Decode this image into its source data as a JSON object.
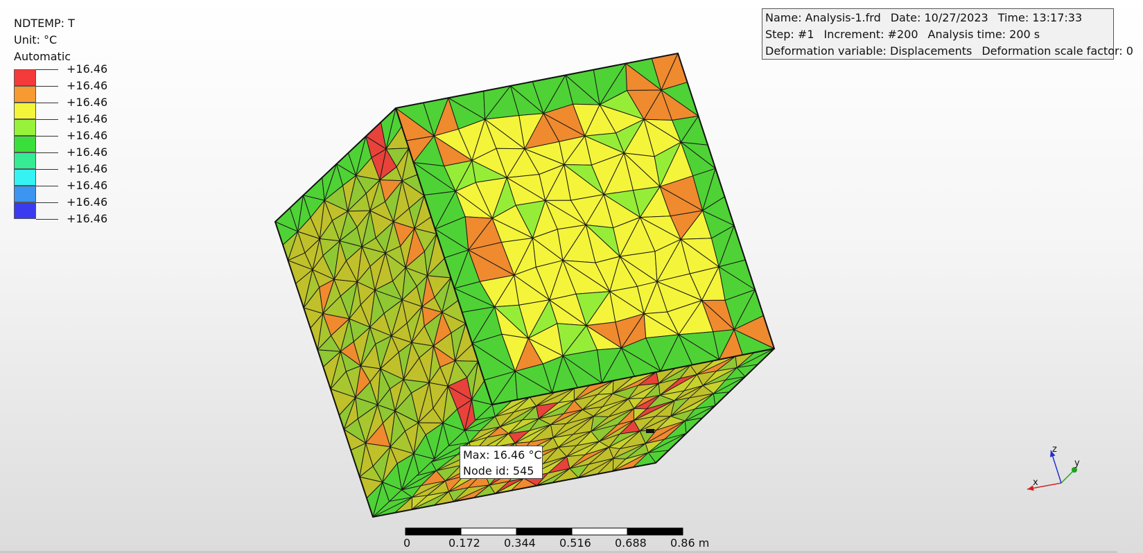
{
  "legend": {
    "variable": "NDTEMP: T",
    "unit": "Unit: °C",
    "mode": "Automatic",
    "levels": [
      {
        "label": "+16.46",
        "color": "#f43a3a"
      },
      {
        "label": "+16.46",
        "color": "#f89a32"
      },
      {
        "label": "+16.46",
        "color": "#f3f53a"
      },
      {
        "label": "+16.46",
        "color": "#98f13a"
      },
      {
        "label": "+16.46",
        "color": "#3bdf3b"
      },
      {
        "label": "+16.46",
        "color": "#35eb94"
      },
      {
        "label": "+16.46",
        "color": "#35f3f3"
      },
      {
        "label": "+16.46",
        "color": "#3b95f1"
      },
      {
        "label": "+16.46",
        "color": "#3a3af1"
      },
      {
        "label": "+16.46"
      }
    ]
  },
  "info": {
    "name": "Name: Analysis-1.frd",
    "date": "Date: 10/27/2023",
    "time": "Time: 13:17:33",
    "step": "Step: #1",
    "increment": "Increment: #200",
    "analysis_time": "Analysis time: 200 s",
    "deformation_variable": "Deformation variable: Displacements",
    "deformation_scale": "Deformation scale factor: 0"
  },
  "tooltip": {
    "max": "Max: 16.46 °C",
    "node": "Node id: 545"
  },
  "scale_bar": {
    "labels": [
      "0",
      "0.172",
      "0.344",
      "0.516",
      "0.688",
      "0.86 m"
    ]
  },
  "axes": {
    "x": "x",
    "y": "y",
    "z": "z",
    "colors": {
      "x": "#d32020",
      "y": "#1fa31f",
      "z": "#2030d0"
    }
  },
  "mesh_colors": {
    "green_dark": "#4fd235",
    "green_light": "#96ed37",
    "yellow": "#f4f43a",
    "olive": "#c0c02a",
    "olive_green": "#8fc832",
    "orange": "#f08a2e",
    "red": "#e8423a"
  }
}
